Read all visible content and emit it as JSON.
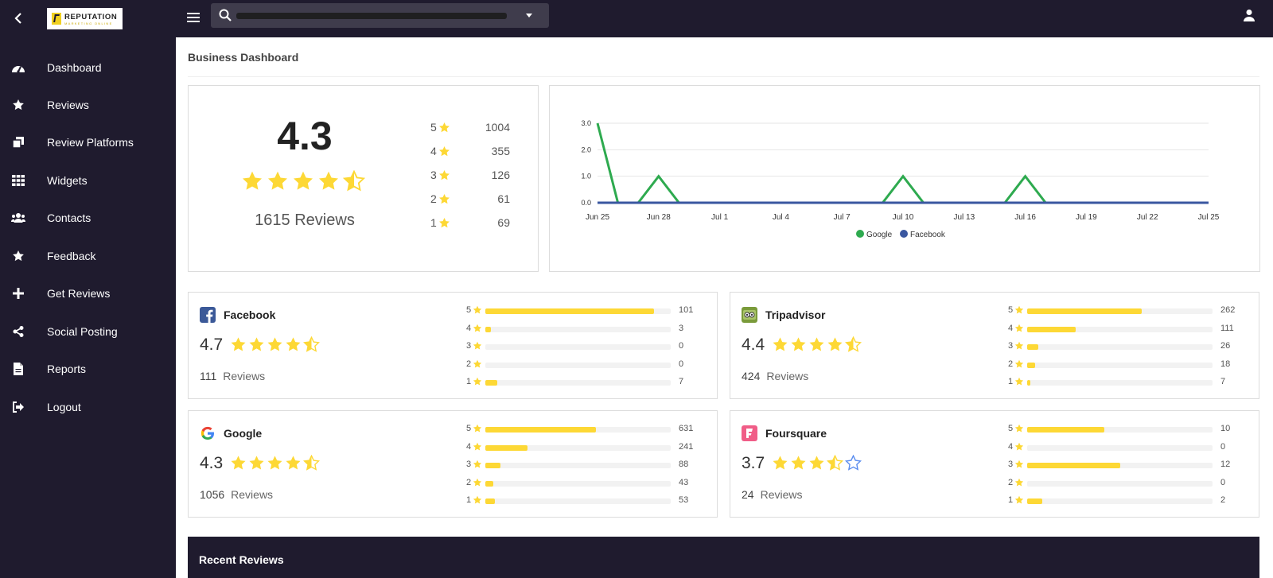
{
  "brand": {
    "logo_text": "REPUTATION",
    "logo_sub": "MARKETING ONLINE"
  },
  "sidebar": {
    "items": [
      {
        "label": "Dashboard",
        "icon": "dashboard-icon"
      },
      {
        "label": "Reviews",
        "icon": "star-icon"
      },
      {
        "label": "Review Platforms",
        "icon": "platforms-icon"
      },
      {
        "label": "Widgets",
        "icon": "grid-icon"
      },
      {
        "label": "Contacts",
        "icon": "users-icon"
      },
      {
        "label": "Feedback",
        "icon": "star-icon"
      },
      {
        "label": "Get Reviews",
        "icon": "plus-icon"
      },
      {
        "label": "Social Posting",
        "icon": "share-icon"
      },
      {
        "label": "Reports",
        "icon": "file-icon"
      },
      {
        "label": "Logout",
        "icon": "logout-icon"
      }
    ]
  },
  "header": {
    "search_value": ""
  },
  "page": {
    "title": "Business Dashboard"
  },
  "summary": {
    "average": "4.3",
    "rating_value": 4.3,
    "total_label": "1615 Reviews",
    "distribution": [
      {
        "stars": "5",
        "count": "1004"
      },
      {
        "stars": "4",
        "count": "355"
      },
      {
        "stars": "3",
        "count": "126"
      },
      {
        "stars": "2",
        "count": "61"
      },
      {
        "stars": "1",
        "count": "69"
      }
    ]
  },
  "chart_data": {
    "type": "line",
    "x": [
      "Jun 25",
      "Jun 26",
      "Jun 27",
      "Jun 28",
      "Jun 29",
      "Jun 30",
      "Jul 1",
      "Jul 2",
      "Jul 3",
      "Jul 4",
      "Jul 5",
      "Jul 6",
      "Jul 7",
      "Jul 8",
      "Jul 9",
      "Jul 10",
      "Jul 11",
      "Jul 12",
      "Jul 13",
      "Jul 14",
      "Jul 15",
      "Jul 16",
      "Jul 17",
      "Jul 18",
      "Jul 19",
      "Jul 20",
      "Jul 21",
      "Jul 22",
      "Jul 23",
      "Jul 24",
      "Jul 25"
    ],
    "x_ticks": [
      "Jun 25",
      "Jun 28",
      "Jul 1",
      "Jul 4",
      "Jul 7",
      "Jul 10",
      "Jul 13",
      "Jul 16",
      "Jul 19",
      "Jul 22",
      "Jul 25"
    ],
    "y_ticks": [
      "0.0",
      "1.0",
      "2.0",
      "3.0"
    ],
    "ylim": [
      0,
      3
    ],
    "series": [
      {
        "name": "Google",
        "color": "#2eaa4f",
        "values": [
          3,
          0,
          0,
          1,
          0,
          0,
          0,
          0,
          0,
          0,
          0,
          0,
          0,
          0,
          0,
          1,
          0,
          0,
          0,
          0,
          0,
          1,
          0,
          0,
          0,
          0,
          0,
          0,
          0,
          0,
          0
        ]
      },
      {
        "name": "Facebook",
        "color": "#3a57a0",
        "values": [
          0,
          0,
          0,
          0,
          0,
          0,
          0,
          0,
          0,
          0,
          0,
          0,
          0,
          0,
          0,
          0,
          0,
          0,
          0,
          0,
          0,
          0,
          0,
          0,
          0,
          0,
          0,
          0,
          0,
          0,
          0
        ]
      }
    ],
    "grid": true,
    "legend": "bottom-center",
    "title": "",
    "xlabel": "",
    "ylabel": ""
  },
  "platforms": [
    {
      "name": "Facebook",
      "rating": "4.7",
      "rating_value": 4.7,
      "reviews": "111",
      "reviews_label": "Reviews",
      "bars": [
        {
          "stars": "5",
          "count": "101",
          "frac": 0.91
        },
        {
          "stars": "4",
          "count": "3",
          "frac": 0.03
        },
        {
          "stars": "3",
          "count": "0",
          "frac": 0
        },
        {
          "stars": "2",
          "count": "0",
          "frac": 0
        },
        {
          "stars": "1",
          "count": "7",
          "frac": 0.063
        }
      ]
    },
    {
      "name": "Tripadvisor",
      "rating": "4.4",
      "rating_value": 4.4,
      "reviews": "424",
      "reviews_label": "Reviews",
      "bars": [
        {
          "stars": "5",
          "count": "262",
          "frac": 0.618
        },
        {
          "stars": "4",
          "count": "111",
          "frac": 0.262
        },
        {
          "stars": "3",
          "count": "26",
          "frac": 0.061
        },
        {
          "stars": "2",
          "count": "18",
          "frac": 0.042
        },
        {
          "stars": "1",
          "count": "7",
          "frac": 0.017
        }
      ]
    },
    {
      "name": "Google",
      "rating": "4.3",
      "rating_value": 4.3,
      "reviews": "1056",
      "reviews_label": "Reviews",
      "bars": [
        {
          "stars": "5",
          "count": "631",
          "frac": 0.598
        },
        {
          "stars": "4",
          "count": "241",
          "frac": 0.228
        },
        {
          "stars": "3",
          "count": "88",
          "frac": 0.083
        },
        {
          "stars": "2",
          "count": "43",
          "frac": 0.041
        },
        {
          "stars": "1",
          "count": "53",
          "frac": 0.05
        }
      ]
    },
    {
      "name": "Foursquare",
      "rating": "3.7",
      "rating_value": 3.7,
      "reviews": "24",
      "reviews_label": "Reviews",
      "bars": [
        {
          "stars": "5",
          "count": "10",
          "frac": 0.417
        },
        {
          "stars": "4",
          "count": "0",
          "frac": 0
        },
        {
          "stars": "3",
          "count": "12",
          "frac": 0.5
        },
        {
          "stars": "2",
          "count": "0",
          "frac": 0
        },
        {
          "stars": "1",
          "count": "2",
          "frac": 0.083
        }
      ]
    }
  ],
  "recent": {
    "title": "Recent Reviews"
  },
  "colors": {
    "sidebar_bg": "#1f1b2e",
    "star": "#fdd835",
    "bar": "#fdd835",
    "empty_star": "#5b8def"
  }
}
